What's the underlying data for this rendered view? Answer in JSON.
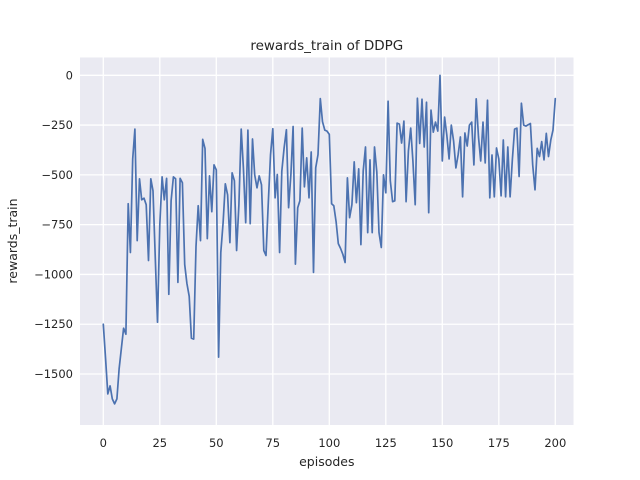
{
  "figure": {
    "title": "rewards_train of DDPG",
    "xlabel": "episodes",
    "ylabel": "rewards_train"
  },
  "chart_data": {
    "type": "line",
    "title": "rewards_train of DDPG",
    "xlabel": "episodes",
    "ylabel": "rewards_train",
    "x_ticks": [
      0,
      25,
      50,
      75,
      100,
      125,
      150,
      175,
      200
    ],
    "x_tick_labels": [
      "0",
      "25",
      "50",
      "75",
      "100",
      "125",
      "150",
      "175",
      "200"
    ],
    "y_ticks": [
      0,
      -250,
      -500,
      -750,
      -1000,
      -1250,
      -1500
    ],
    "y_tick_labels": [
      "0",
      "−250",
      "−500",
      "−750",
      "−1000",
      "−1250",
      "−1500"
    ],
    "xlim": [
      -10,
      210
    ],
    "ylim": [
      -1750,
      90
    ],
    "grid": true,
    "legend_position": "none",
    "style": {
      "line_color": "#4c72b0",
      "axes_background": "#eaeaf2",
      "grid_color": "#ffffff",
      "text_color": "#262626",
      "figure_background": "#ffffff"
    },
    "series": [
      {
        "name": "rewards_train",
        "x_start": 0,
        "x_step": 1,
        "values": [
          -1250,
          -1425,
          -1600,
          -1560,
          -1625,
          -1650,
          -1625,
          -1475,
          -1370,
          -1270,
          -1300,
          -645,
          -890,
          -420,
          -270,
          -830,
          -520,
          -625,
          -617,
          -650,
          -930,
          -520,
          -580,
          -920,
          -1240,
          -750,
          -510,
          -625,
          -517,
          -1100,
          -630,
          -510,
          -520,
          -1040,
          -517,
          -540,
          -950,
          -1045,
          -1110,
          -1320,
          -1325,
          -860,
          -655,
          -830,
          -322,
          -367,
          -820,
          -505,
          -685,
          -450,
          -475,
          -1415,
          -890,
          -740,
          -545,
          -600,
          -840,
          -490,
          -530,
          -880,
          -650,
          -270,
          -465,
          -740,
          -275,
          -745,
          -320,
          -500,
          -565,
          -505,
          -550,
          -880,
          -905,
          -640,
          -400,
          -268,
          -615,
          -498,
          -890,
          -482,
          -365,
          -273,
          -665,
          -498,
          -257,
          -948,
          -665,
          -630,
          -265,
          -560,
          -415,
          -615,
          -385,
          -990,
          -465,
          -398,
          -117,
          -233,
          -275,
          -280,
          -297,
          -645,
          -655,
          -735,
          -845,
          -870,
          -900,
          -940,
          -515,
          -715,
          -650,
          -435,
          -640,
          -470,
          -850,
          -480,
          -360,
          -790,
          -425,
          -790,
          -360,
          -485,
          -790,
          -865,
          -500,
          -590,
          -130,
          -530,
          -635,
          -630,
          -240,
          -245,
          -340,
          -230,
          -635,
          -380,
          -265,
          -430,
          -650,
          -115,
          -342,
          -120,
          -360,
          -135,
          -690,
          -175,
          -285,
          -235,
          -280,
          0,
          -430,
          -210,
          -300,
          -420,
          -250,
          -330,
          -465,
          -400,
          -310,
          -610,
          -290,
          -355,
          -250,
          -235,
          -450,
          -118,
          -310,
          -430,
          -235,
          -440,
          -125,
          -615,
          -400,
          -610,
          -365,
          -420,
          -605,
          -325,
          -610,
          -360,
          -610,
          -420,
          -270,
          -265,
          -508,
          -140,
          -250,
          -255,
          -248,
          -242,
          -450,
          -575,
          -367,
          -408,
          -333,
          -425,
          -292,
          -408,
          -325,
          -275,
          -117
        ]
      }
    ]
  }
}
